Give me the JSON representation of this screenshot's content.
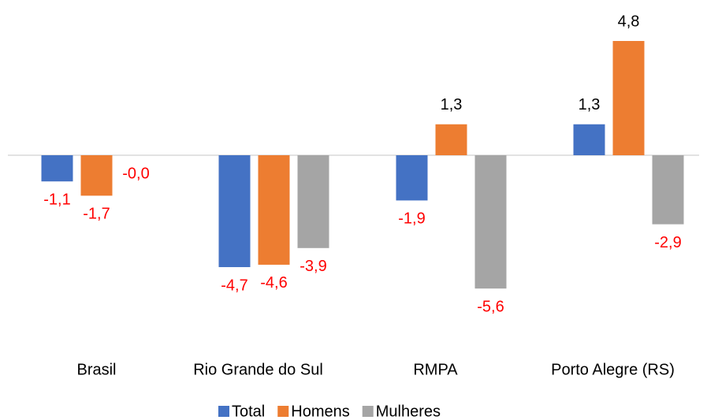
{
  "chart_data": {
    "type": "bar",
    "categories": [
      "Brasil",
      "Rio Grande do Sul",
      "RMPA",
      "Porto Alegre (RS)"
    ],
    "series": [
      {
        "name": "Total",
        "color": "#4472c4",
        "values": [
          -1.1,
          -4.7,
          -1.9,
          1.3
        ],
        "value_labels": [
          "-1,1",
          "-4,7",
          "-1,9",
          "1,3"
        ]
      },
      {
        "name": "Homens",
        "color": "#ed7d31",
        "values": [
          -1.7,
          -4.6,
          1.3,
          4.8
        ],
        "value_labels": [
          "-1,7",
          "-4,6",
          "1,3",
          "4,8"
        ]
      },
      {
        "name": "Mulheres",
        "color": "#a5a5a5",
        "values": [
          0,
          -3.9,
          -5.6,
          -2.9
        ],
        "value_labels": [
          "-0,0",
          "-3,9",
          "-5,6",
          "-2,9"
        ]
      }
    ],
    "negative_label_color": "#ff0000"
  }
}
